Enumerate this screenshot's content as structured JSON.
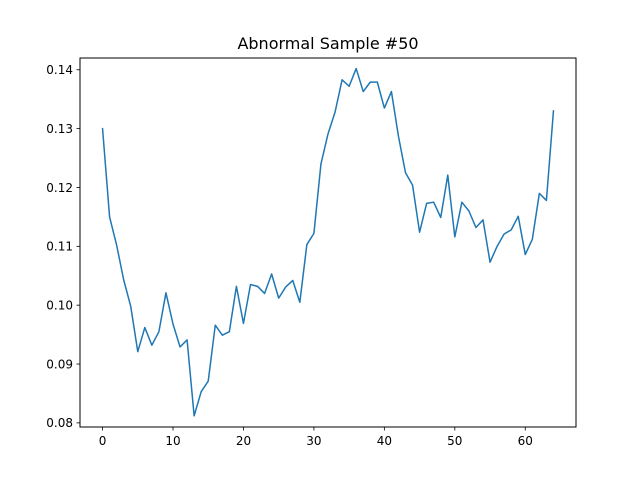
{
  "chart_data": {
    "type": "line",
    "title": "Abnormal Sample #50",
    "xlabel": "",
    "ylabel": "",
    "xlim": [
      -3.2,
      67.2
    ],
    "ylim": [
      0.0793,
      0.142
    ],
    "xticks": [
      0,
      10,
      20,
      30,
      40,
      50,
      60
    ],
    "yticks": [
      0.08,
      0.09,
      0.1,
      0.11,
      0.12,
      0.13,
      0.14
    ],
    "ytick_labels": [
      "0.08",
      "0.09",
      "0.10",
      "0.11",
      "0.12",
      "0.13",
      "0.14"
    ],
    "grid": false,
    "series": [
      {
        "color": "#1f77b4",
        "x": [
          0,
          1,
          2,
          3,
          4,
          5,
          6,
          7,
          8,
          9,
          10,
          11,
          12,
          13,
          14,
          15,
          16,
          17,
          18,
          19,
          20,
          21,
          22,
          23,
          24,
          25,
          26,
          27,
          28,
          29,
          30,
          31,
          32,
          33,
          34,
          35,
          36,
          37,
          38,
          39,
          40,
          41,
          42,
          43,
          44,
          45,
          46,
          47,
          48,
          49,
          50,
          51,
          52,
          53,
          54,
          55,
          56,
          57,
          58,
          59,
          60,
          61,
          62,
          63,
          64
        ],
        "values": [
          0.13,
          0.115,
          0.1102,
          0.1043,
          0.0998,
          0.0921,
          0.0962,
          0.0932,
          0.0955,
          0.1021,
          0.0968,
          0.0929,
          0.0941,
          0.0812,
          0.0853,
          0.0871,
          0.0966,
          0.0949,
          0.0955,
          0.1032,
          0.0969,
          0.1035,
          0.1032,
          0.102,
          0.1053,
          0.1012,
          0.1031,
          0.1042,
          0.1005,
          0.1103,
          0.1122,
          0.124,
          0.1291,
          0.1328,
          0.1383,
          0.1372,
          0.1402,
          0.1363,
          0.1379,
          0.1379,
          0.1335,
          0.1363,
          0.1287,
          0.1225,
          0.1204,
          0.1124,
          0.1173,
          0.1175,
          0.1149,
          0.1221,
          0.1116,
          0.1175,
          0.116,
          0.1132,
          0.1145,
          0.1073,
          0.11,
          0.1121,
          0.1128,
          0.1151,
          0.1086,
          0.1112,
          0.119,
          0.1178,
          0.133
        ]
      }
    ]
  }
}
